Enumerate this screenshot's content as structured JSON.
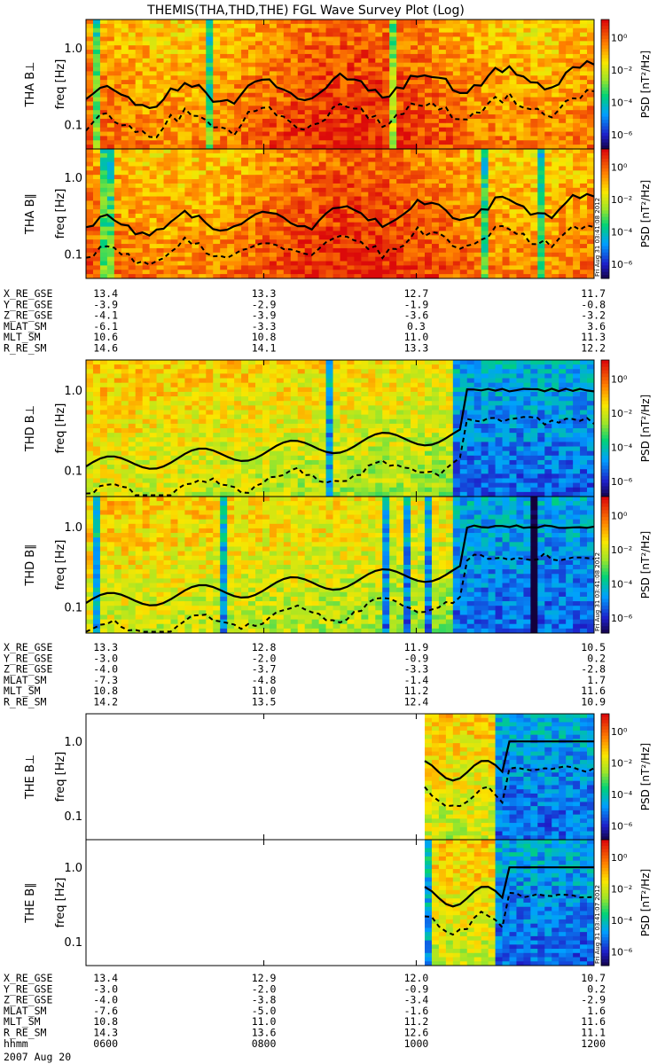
{
  "title": "THEMIS(THA,THD,THE) FGL Wave Survey Plot (Log)",
  "colorbar": {
    "label": "PSD [nT²/Hz]",
    "ticks": [
      "10⁰",
      "10⁻²",
      "10⁻⁴",
      "10⁻⁶"
    ]
  },
  "y_ticks": [
    "1.0",
    "0.1"
  ],
  "freq_label": "freq [Hz]",
  "stamps": [
    "Fri Aug 31 03:41:08 2012",
    "Fri Aug 31 03:41:08 2012",
    "Fri Aug 31 03:41:07 2012"
  ],
  "groups": [
    {
      "probe": "THA",
      "panels": [
        {
          "label": "THA B⊥",
          "data_start_frac": 0.0
        },
        {
          "label": "THA B∥",
          "data_start_frac": 0.0
        }
      ],
      "ephem": [
        {
          "name": "X_RE_GSE",
          "values": [
            "13.4",
            "13.3",
            "12.7",
            "11.7"
          ]
        },
        {
          "name": "Y_RE_GSE",
          "values": [
            "-3.9",
            "-2.9",
            "-1.9",
            "-0.8"
          ]
        },
        {
          "name": "Z_RE_GSE",
          "values": [
            "-4.1",
            "-3.9",
            "-3.6",
            "-3.2"
          ]
        },
        {
          "name": "MLAT_SM",
          "values": [
            "-6.1",
            "-3.3",
            "0.3",
            "3.6"
          ]
        },
        {
          "name": "MLT_SM",
          "values": [
            "10.6",
            "10.8",
            "11.0",
            "11.3"
          ]
        },
        {
          "name": "R_RE_SM",
          "values": [
            "14.6",
            "14.1",
            "13.3",
            "12.2"
          ]
        }
      ]
    },
    {
      "probe": "THD",
      "panels": [
        {
          "label": "THD B⊥",
          "data_start_frac": 0.0
        },
        {
          "label": "THD B∥",
          "data_start_frac": 0.0
        }
      ],
      "ephem": [
        {
          "name": "X_RE_GSE",
          "values": [
            "13.3",
            "12.8",
            "11.9",
            "10.5"
          ]
        },
        {
          "name": "Y_RE_GSE",
          "values": [
            "-3.0",
            "-2.0",
            "-0.9",
            "0.2"
          ]
        },
        {
          "name": "Z_RE_GSE",
          "values": [
            "-4.0",
            "-3.7",
            "-3.3",
            "-2.8"
          ]
        },
        {
          "name": "MLAT_SM",
          "values": [
            "-7.3",
            "-4.8",
            "-1.4",
            "1.7"
          ]
        },
        {
          "name": "MLT_SM",
          "values": [
            "10.8",
            "11.0",
            "11.2",
            "11.6"
          ]
        },
        {
          "name": "R_RE_SM",
          "values": [
            "14.2",
            "13.5",
            "12.4",
            "10.9"
          ]
        }
      ]
    },
    {
      "probe": "THE",
      "panels": [
        {
          "label": "THE B⊥",
          "data_start_frac": 0.675
        },
        {
          "label": "THE B∥",
          "data_start_frac": 0.675
        }
      ],
      "ephem": [
        {
          "name": "X_RE_GSE",
          "values": [
            "13.4",
            "12.9",
            "12.0",
            "10.7"
          ]
        },
        {
          "name": "Y_RE_GSE",
          "values": [
            "-3.0",
            "-2.0",
            "-0.9",
            "0.2"
          ]
        },
        {
          "name": "Z_RE_GSE",
          "values": [
            "-4.0",
            "-3.8",
            "-3.4",
            "-2.9"
          ]
        },
        {
          "name": "MLAT_SM",
          "values": [
            "-7.6",
            "-5.0",
            "-1.6",
            "1.6"
          ]
        },
        {
          "name": "MLT_SM",
          "values": [
            "10.8",
            "11.0",
            "11.2",
            "11.6"
          ]
        },
        {
          "name": "R_RE_SM",
          "values": [
            "14.3",
            "13.6",
            "12.6",
            "11.1"
          ]
        },
        {
          "name": "hhmm",
          "values": [
            "0600",
            "0800",
            "1000",
            "1200"
          ]
        }
      ]
    }
  ],
  "date": "2007 Aug 20",
  "chart_data": {
    "type": "heatmap",
    "title": "THEMIS(THA,THD,THE) FGL Wave Survey Plot (Log)",
    "x_ticks": [
      "0600",
      "0800",
      "1000",
      "1200"
    ],
    "y_scale": "log",
    "ylabel": "freq [Hz]",
    "colorbar_label": "PSD [nT²/Hz]",
    "colorbar_range": [
      "10⁻⁶",
      "10⁰"
    ],
    "date": "2007 Aug 20"
  }
}
